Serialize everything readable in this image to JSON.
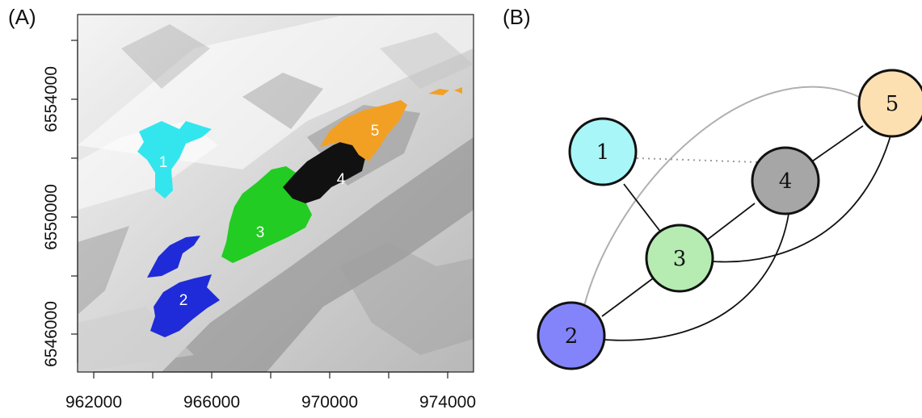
{
  "panels": {
    "a_label": "(A)",
    "b_label": "(B)"
  },
  "map": {
    "x_ticks": [
      "962000",
      "966000",
      "970000",
      "974000"
    ],
    "y_ticks": [
      "6546000",
      "6550000",
      "6554000"
    ],
    "zones": [
      {
        "id": "1",
        "label": "1",
        "color": "#33e6ee"
      },
      {
        "id": "2",
        "label": "2",
        "color": "#1f2bd8"
      },
      {
        "id": "3",
        "label": "3",
        "color": "#22cc22"
      },
      {
        "id": "4",
        "label": "4",
        "color": "#111111"
      },
      {
        "id": "5",
        "label": "5",
        "color": "#f2a024"
      }
    ]
  },
  "graph": {
    "nodes": [
      {
        "id": "1",
        "label": "1",
        "fill": "#a8f6f8"
      },
      {
        "id": "2",
        "label": "2",
        "fill": "#8484fa"
      },
      {
        "id": "3",
        "label": "3",
        "fill": "#b6ecb2"
      },
      {
        "id": "4",
        "label": "4",
        "fill": "#a6a6a6"
      },
      {
        "id": "5",
        "label": "5",
        "fill": "#fde0b2"
      }
    ],
    "edges": [
      {
        "from": "1",
        "to": "3",
        "style": "solid"
      },
      {
        "from": "2",
        "to": "3",
        "style": "solid"
      },
      {
        "from": "3",
        "to": "4",
        "style": "solid"
      },
      {
        "from": "4",
        "to": "5",
        "style": "solid"
      },
      {
        "from": "3",
        "to": "5",
        "style": "solid"
      },
      {
        "from": "2",
        "to": "4",
        "style": "solid"
      },
      {
        "from": "2",
        "to": "5",
        "style": "gray"
      },
      {
        "from": "1",
        "to": "4",
        "style": "dotted"
      }
    ]
  }
}
